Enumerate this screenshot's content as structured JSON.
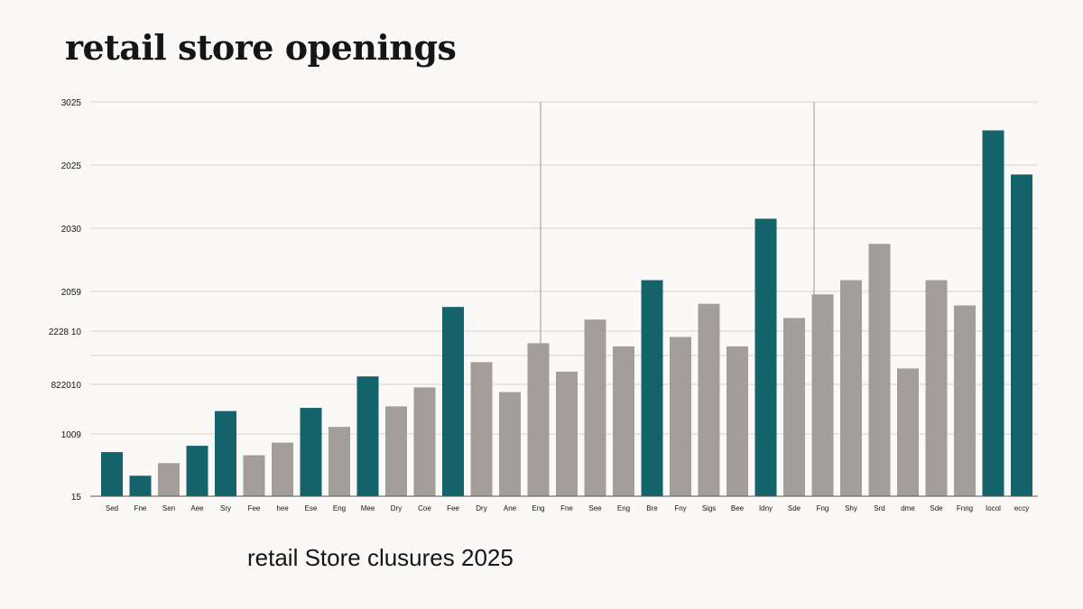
{
  "chart_data": {
    "type": "bar",
    "title": "retail store openings",
    "subtitle": "retail Store clusures 2025",
    "xlabel": "",
    "ylabel": "",
    "grid": true,
    "y_tick_labels": [
      "15",
      "1009",
      "822010",
      "2228 10",
      "2059",
      "2030",
      "2025",
      "3025"
    ],
    "categories": [
      "Sed",
      "Fne",
      "Sen",
      "Aee",
      "Sry",
      "Fee",
      "hee",
      "Ese",
      "Eng",
      "Mee",
      "Dry",
      "Coe",
      "Fee",
      "Dry",
      "Ane",
      "Eng",
      "Fne",
      "See",
      "Eng",
      "Bre",
      "Fny",
      "Sigs",
      "Bee",
      "Idny",
      "Sde",
      "Fng",
      "Shy",
      "Srd",
      "dme",
      "Sde",
      "Fnng",
      "Iocol",
      "eccy"
    ],
    "values": [
      14,
      6.5,
      10.5,
      16,
      27,
      13,
      17,
      28,
      22,
      38,
      28.5,
      34.5,
      60,
      42.5,
      33,
      48.5,
      39.5,
      56,
      47.5,
      68.5,
      50.5,
      61,
      47.5,
      88,
      56.5,
      64,
      68.5,
      80,
      40.5,
      68.5,
      60.5,
      116,
      102
    ],
    "colors": [
      "teal",
      "teal",
      "gray",
      "teal",
      "teal",
      "gray",
      "gray",
      "teal",
      "gray",
      "teal",
      "gray",
      "gray",
      "teal",
      "gray",
      "gray",
      "gray",
      "gray",
      "gray",
      "gray",
      "teal",
      "gray",
      "gray",
      "gray",
      "teal",
      "gray",
      "gray",
      "gray",
      "gray",
      "gray",
      "gray",
      "gray",
      "teal",
      "teal"
    ],
    "palette": {
      "teal": "#14636b",
      "gray": "#a39e99",
      "grid": "#d4d2cf",
      "axis": "#555555",
      "text": "#151515"
    },
    "ylim": [
      0,
      125
    ]
  }
}
